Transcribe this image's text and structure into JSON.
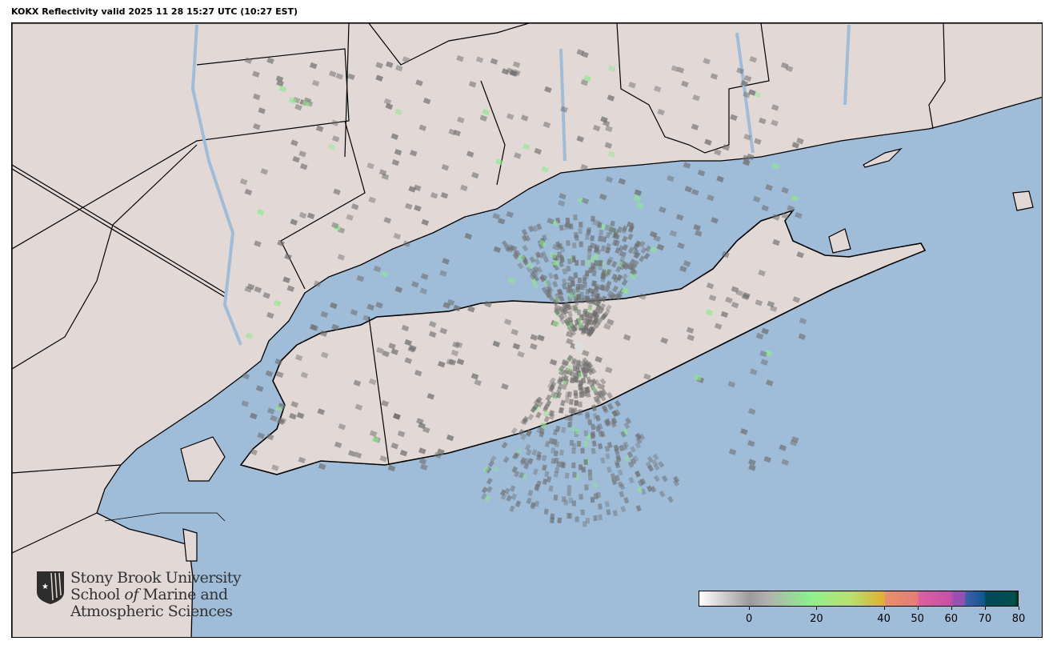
{
  "title": "KOKX Reflectivity valid 2025 11 28 15:27 UTC (10:27 EST)",
  "colors": {
    "water": "#9fbcd8",
    "land": "#e2d9d6",
    "border": "#000000",
    "radar_gray": "#6e6e6e",
    "radar_green": "#8ee88e"
  },
  "logo": {
    "line1": "Stony Brook University",
    "line2a": "School ",
    "line2b": "of",
    "line2c": " Marine and",
    "line3": "Atmospheric Sciences"
  },
  "colorbar": {
    "units_range": [
      -15,
      80
    ],
    "ticks": [
      "0",
      "20",
      "40",
      "50",
      "60",
      "70",
      "80"
    ],
    "tick_values": [
      0,
      20,
      40,
      50,
      60,
      70,
      80
    ],
    "stops": [
      {
        "v": -15,
        "c": "#ffffff"
      },
      {
        "v": 0,
        "c": "#9a9a9a"
      },
      {
        "v": 5,
        "c": "#b0b0b0"
      },
      {
        "v": 18,
        "c": "#8cf08c"
      },
      {
        "v": 30,
        "c": "#b8e070"
      },
      {
        "v": 40,
        "c": "#dfb030"
      },
      {
        "v": 40.5,
        "c": "#e8906a"
      },
      {
        "v": 50,
        "c": "#e87a78"
      },
      {
        "v": 50.5,
        "c": "#dc60a0"
      },
      {
        "v": 60,
        "c": "#c850a8"
      },
      {
        "v": 61,
        "c": "#9850b0"
      },
      {
        "v": 64,
        "c": "#9850b0"
      },
      {
        "v": 64.5,
        "c": "#3c60a8"
      },
      {
        "v": 70,
        "c": "#105890"
      },
      {
        "v": 70.5,
        "c": "#004858"
      },
      {
        "v": 79,
        "c": "#005050"
      },
      {
        "v": 80,
        "c": "#003820"
      }
    ]
  }
}
